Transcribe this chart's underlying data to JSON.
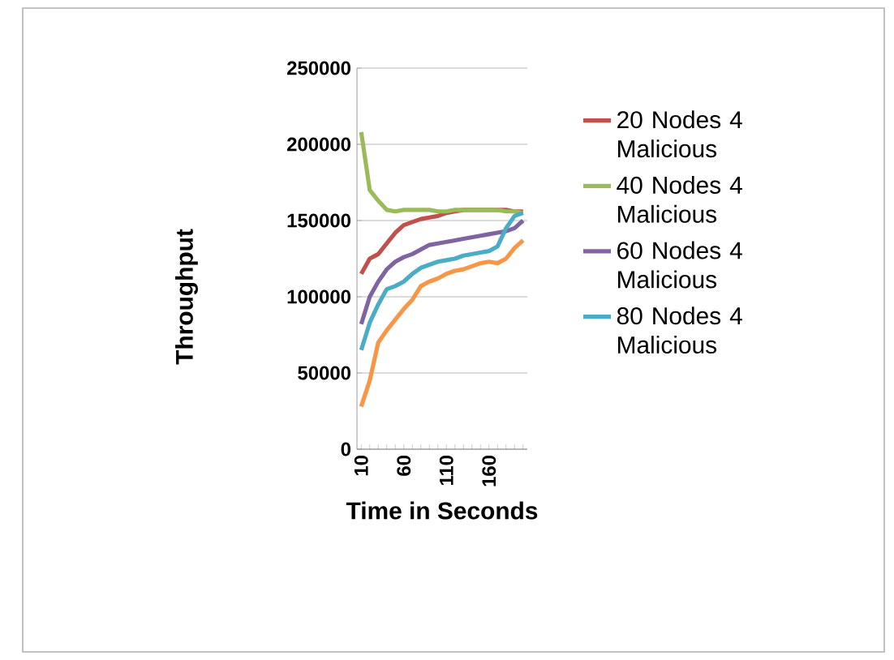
{
  "chart_data": {
    "type": "line",
    "xlabel": "Time in Seconds",
    "ylabel": "Throughput",
    "categories": [
      "10",
      null,
      null,
      null,
      null,
      "60",
      null,
      null,
      null,
      null,
      "110",
      null,
      null,
      null,
      null,
      "160",
      null,
      null,
      null,
      null
    ],
    "series": [
      {
        "name": "20 Nodes 4 Malicious",
        "color": "#c0504d",
        "values": [
          115000,
          125000,
          128000,
          135000,
          142000,
          147000,
          149000,
          151000,
          152000,
          153000,
          155000,
          156000,
          157000,
          null,
          null,
          null,
          157000,
          157000,
          156000,
          156000
        ]
      },
      {
        "name": "40 Nodes 4 Malicious",
        "color": "#9bbb59",
        "values": [
          208000,
          170000,
          163000,
          157000,
          156000,
          157000,
          157000,
          157000,
          157000,
          156000,
          156000,
          157000,
          157000,
          157000,
          157000,
          157000,
          157000,
          156000,
          156000,
          155000
        ]
      },
      {
        "name": "60 Nodes 4 Malicious",
        "color": "#8064a2",
        "values": [
          82000,
          100000,
          110000,
          118000,
          123000,
          126000,
          128000,
          131000,
          134000,
          135000,
          136000,
          137000,
          138000,
          139000,
          140000,
          141000,
          142000,
          143000,
          145000,
          150000
        ]
      },
      {
        "name": "80 Nodes 4 Malicious",
        "color": "#4bacc6",
        "values": [
          65000,
          83000,
          95000,
          105000,
          107000,
          110000,
          115000,
          119000,
          121000,
          123000,
          124000,
          125000,
          127000,
          128000,
          129000,
          130000,
          133000,
          145000,
          153000,
          155000
        ]
      },
      {
        "color": "#f79646",
        "values": [
          28000,
          45000,
          70000,
          78000,
          85000,
          92000,
          98000,
          107000,
          110000,
          112000,
          115000,
          117000,
          118000,
          120000,
          122000,
          123000,
          122000,
          125000,
          132000,
          137000
        ]
      }
    ],
    "ylim": [
      0,
      250000
    ],
    "yticks": [
      0,
      50000,
      100000,
      150000,
      200000,
      250000
    ],
    "grid": "y",
    "legend": "right"
  }
}
